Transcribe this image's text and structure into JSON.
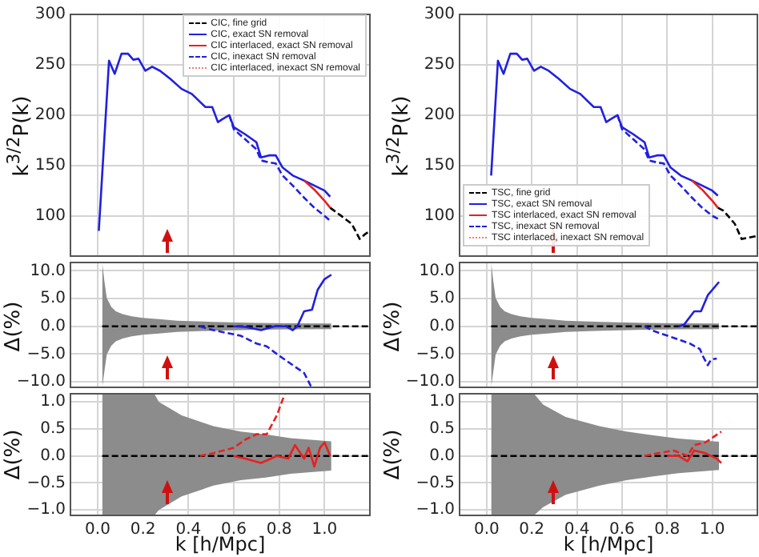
{
  "chart_data": [
    {
      "type": "line",
      "ylabel": "k$^{3/2}$P(k)",
      "xlim": [
        -0.12,
        1.2
      ],
      "ylim": [
        60,
        300
      ],
      "xticks": [
        0,
        0.2,
        0.4,
        0.6,
        0.8,
        1
      ],
      "yticks": [
        100,
        150,
        200,
        250,
        300
      ],
      "grid": true,
      "legend": "top right",
      "tick_labels": "y",
      "series": [
        {
          "name": "CIC, fine grid",
          "color": "#000000",
          "line_style": "dashed",
          "x": [
            1.025,
            1.073,
            1.12,
            1.155,
            1.18,
            1.2
          ],
          "values": [
            108,
            100,
            92,
            77,
            82,
            85
          ]
        },
        {
          "name": "CIC, exact SN removal",
          "color": "#2020e0",
          "line_style": "solid",
          "x": [
            0.005,
            0.05,
            0.075,
            0.105,
            0.134,
            0.157,
            0.18,
            0.21,
            0.24,
            0.275,
            0.32,
            0.37,
            0.415,
            0.475,
            0.505,
            0.53,
            0.55,
            0.58,
            0.6,
            0.65,
            0.7,
            0.72,
            0.755,
            0.785,
            0.815,
            0.86,
            0.91,
            0.955,
            1.0,
            1.025
          ],
          "values": [
            85,
            254,
            241,
            261,
            261,
            255,
            256,
            244,
            248,
            244,
            236,
            226,
            221,
            208,
            208,
            193,
            196,
            200,
            188,
            181,
            173,
            158,
            160,
            160,
            148,
            140,
            135,
            130,
            125,
            119
          ]
        },
        {
          "name": "CIC interlaced, exact SN removal",
          "color": "#e82020",
          "line_style": "solid",
          "x": [
            0.91,
            0.955,
            1.0,
            1.025
          ],
          "values": [
            135,
            126,
            115,
            108
          ]
        },
        {
          "name": "CIC, inexact SN removal",
          "color": "#2020e0",
          "line_style": "dashed",
          "x": [
            0.58,
            0.6,
            0.65,
            0.7,
            0.72,
            0.755,
            0.785,
            0.815,
            0.86,
            0.91,
            0.955,
            1.0,
            1.025
          ],
          "values": [
            200,
            186,
            176,
            166,
            155,
            153,
            152,
            140,
            130,
            118,
            108,
            100,
            95
          ]
        },
        {
          "name": "CIC interlaced, inexact SN removal",
          "color": "#f08080",
          "line_style": "dotted"
        }
      ]
    },
    {
      "type": "line",
      "ylabel": "k$^{3/2}$P(k)",
      "xlim": [
        -0.12,
        1.2
      ],
      "ylim": [
        60,
        300
      ],
      "xticks": [
        0,
        0.2,
        0.4,
        0.6,
        0.8,
        1
      ],
      "yticks": [
        100,
        150,
        200,
        250,
        300
      ],
      "grid": true,
      "legend": "bottom left",
      "tick_labels": "y",
      "series": [
        {
          "name": "TSC, fine grid",
          "color": "#000000",
          "line_style": "dashed",
          "x": [
            1.025,
            1.05,
            1.1,
            1.13,
            1.2
          ],
          "values": [
            108,
            105,
            92,
            77,
            80
          ]
        },
        {
          "name": "TSC, exact SN removal",
          "color": "#2020e0",
          "line_style": "solid",
          "x": [
            0.02,
            0.05,
            0.075,
            0.105,
            0.134,
            0.157,
            0.18,
            0.21,
            0.24,
            0.275,
            0.32,
            0.37,
            0.415,
            0.475,
            0.505,
            0.53,
            0.55,
            0.58,
            0.6,
            0.65,
            0.7,
            0.72,
            0.755,
            0.785,
            0.815,
            0.86,
            0.91,
            0.955,
            1.0,
            1.025
          ],
          "values": [
            140,
            254,
            241,
            261,
            261,
            255,
            256,
            244,
            248,
            244,
            236,
            226,
            221,
            208,
            208,
            193,
            196,
            200,
            188,
            181,
            173,
            158,
            160,
            160,
            148,
            140,
            135,
            130,
            125,
            120
          ]
        },
        {
          "name": "TSC interlaced, exact SN removal",
          "color": "#e82020",
          "line_style": "solid",
          "x": [
            0.91,
            0.955,
            1.0,
            1.025
          ],
          "values": [
            135,
            126,
            115,
            108
          ]
        },
        {
          "name": "TSC, inexact SN removal",
          "color": "#2020e0",
          "line_style": "dashed",
          "x": [
            0.58,
            0.6,
            0.65,
            0.7,
            0.72,
            0.755,
            0.785,
            0.815,
            0.86,
            0.91,
            0.955,
            1.0,
            1.025
          ],
          "values": [
            200,
            186,
            176,
            166,
            155,
            153,
            152,
            140,
            130,
            118,
            108,
            100,
            97
          ]
        },
        {
          "name": "TSC interlaced, inexact SN removal",
          "color": "#f08080",
          "line_style": "dotted"
        }
      ]
    },
    {
      "type": "line",
      "ylabel": "Δ(%)",
      "xlim": [
        -0.12,
        1.2
      ],
      "ylim": [
        -11,
        11.5
      ],
      "xticks": [
        0,
        0.2,
        0.4,
        0.6,
        0.8,
        1
      ],
      "yticks": [
        {
          "value": 10,
          "label": "10.0"
        },
        {
          "value": 5,
          "label": "5.0"
        },
        {
          "value": 0,
          "label": "0.0"
        },
        {
          "value": -5,
          "label": "−5.0"
        },
        {
          "value": -10,
          "label": "−10.0"
        }
      ],
      "grid": true,
      "tick_labels": "y",
      "series": [
        {
          "color": "#000000",
          "line_style": "dashed",
          "x": [
            0.02,
            0.03,
            0.04,
            0.06,
            0.08,
            0.11,
            0.15,
            0.2,
            0.27,
            0.35,
            0.51,
            0.7,
            0.85,
            1.03,
            1.2
          ],
          "values": [
            0,
            0,
            0,
            0,
            0,
            0,
            0,
            0,
            0,
            0,
            0,
            0,
            0,
            0,
            0
          ],
          "upper": [
            11.5,
            8,
            5.1,
            3.5,
            2.7,
            2.2,
            1.8,
            1.5,
            1.3,
            1.0,
            0.8,
            0.6,
            0.55,
            0.5,
            null
          ],
          "lower": [
            -11,
            -8,
            -5.1,
            -3.5,
            -2.7,
            -2.2,
            -1.8,
            -1.5,
            -1.3,
            -1.0,
            -0.8,
            -0.6,
            -0.55,
            -0.5,
            null
          ]
        },
        {
          "color": "#2020e0",
          "line_style": "solid",
          "x": [
            0.6,
            0.65,
            0.72,
            0.78,
            0.83,
            0.86,
            0.88,
            0.91,
            0.945,
            0.97,
            1.0,
            1.03
          ],
          "values": [
            0,
            -0.1,
            -0.7,
            0,
            0,
            -0.7,
            0,
            2.7,
            3.0,
            6.6,
            8.5,
            9.3
          ]
        },
        {
          "color": "#2020e0",
          "line_style": "dashed",
          "x": [
            0.45,
            0.51,
            0.63,
            0.7,
            0.745,
            0.79,
            0.86,
            0.91,
            0.94
          ],
          "values": [
            0,
            -0.7,
            -1.7,
            -3.1,
            -3.6,
            -5.0,
            -7.0,
            -8.4,
            -10.8
          ]
        }
      ]
    },
    {
      "type": "line",
      "ylabel": "Δ(%)",
      "xlim": [
        -0.12,
        1.2
      ],
      "ylim": [
        -11,
        11.5
      ],
      "xticks": [
        0,
        0.2,
        0.4,
        0.6,
        0.8,
        1
      ],
      "yticks": [
        {
          "value": 10,
          "label": "10.0"
        },
        {
          "value": 5,
          "label": "5.0"
        },
        {
          "value": 0,
          "label": "0.0"
        },
        {
          "value": -5,
          "label": "−5.0"
        },
        {
          "value": -10,
          "label": "−10.0"
        }
      ],
      "grid": true,
      "tick_labels": "y",
      "series": [
        {
          "color": "#000000",
          "line_style": "dashed",
          "x": [
            0.02,
            0.03,
            0.04,
            0.06,
            0.08,
            0.11,
            0.15,
            0.2,
            0.27,
            0.35,
            0.51,
            0.7,
            0.85,
            1.03,
            1.2
          ],
          "values": [
            0,
            0,
            0,
            0,
            0,
            0,
            0,
            0,
            0,
            0,
            0,
            0,
            0,
            0,
            0
          ],
          "upper": [
            11.5,
            8,
            5.1,
            3.5,
            2.7,
            2.2,
            1.8,
            1.5,
            1.3,
            1.0,
            0.8,
            0.6,
            0.55,
            0.5,
            null
          ],
          "lower": [
            -11,
            -8,
            -5.1,
            -3.5,
            -2.7,
            -2.2,
            -1.8,
            -1.5,
            -1.3,
            -1.0,
            -0.8,
            -0.6,
            -0.55,
            -0.5,
            null
          ]
        },
        {
          "color": "#2020e0",
          "line_style": "solid",
          "x": [
            0.85,
            0.875,
            0.92,
            0.95,
            0.98,
            1.03
          ],
          "values": [
            0,
            0.3,
            2.7,
            2.7,
            5.6,
            8.0
          ]
        },
        {
          "color": "#2020e0",
          "line_style": "dashed",
          "x": [
            0.7,
            0.73,
            0.83,
            0.9,
            0.945,
            0.96,
            0.98,
            0.995,
            1.02
          ],
          "values": [
            0,
            -0.7,
            -2.1,
            -3.1,
            -4.1,
            -5.5,
            -7.0,
            -6.0,
            -5.8
          ]
        }
      ]
    },
    {
      "type": "line",
      "ylabel": "Δ(%)",
      "xlabel": "k [h/Mpc]",
      "xlim": [
        -0.12,
        1.2
      ],
      "ylim": [
        -1.1,
        1.15
      ],
      "xticks": [
        {
          "value": 0,
          "label": "0.0"
        },
        {
          "value": 0.2,
          "label": "0.2"
        },
        {
          "value": 0.4,
          "label": "0.4"
        },
        {
          "value": 0.6,
          "label": "0.6"
        },
        {
          "value": 0.8,
          "label": "0.8"
        },
        {
          "value": 1,
          "label": "1.0"
        }
      ],
      "yticks": [
        {
          "value": 1,
          "label": "1.0"
        },
        {
          "value": 0.5,
          "label": "0.5"
        },
        {
          "value": 0,
          "label": "0.0"
        },
        {
          "value": -0.5,
          "label": "−0.5"
        },
        {
          "value": -1,
          "label": "−1.0"
        }
      ],
      "grid": true,
      "series": [
        {
          "color": "#000000",
          "line_style": "dashed",
          "x": [
            0.02,
            0.25,
            0.27,
            0.37,
            0.51,
            0.63,
            0.74,
            0.85,
            1.03,
            1.2
          ],
          "values": [
            0,
            0,
            0,
            0,
            0,
            0,
            0,
            0,
            0,
            0
          ],
          "upper": [
            1.15,
            1.15,
            1.0,
            0.75,
            0.55,
            0.45,
            0.4,
            0.33,
            0.27,
            null
          ],
          "lower": [
            -1.1,
            -1.1,
            -1.0,
            -0.75,
            -0.55,
            -0.45,
            -0.4,
            -0.33,
            -0.27,
            null
          ]
        },
        {
          "color": "#e82020",
          "line_style": "solid",
          "x": [
            0.6,
            0.65,
            0.72,
            0.79,
            0.84,
            0.87,
            0.91,
            0.93,
            0.955,
            0.98,
            1.0,
            1.025
          ],
          "values": [
            0,
            -0.05,
            -0.13,
            0,
            -0.05,
            0.2,
            -0.05,
            0.15,
            -0.2,
            0.15,
            0.25,
            0
          ]
        },
        {
          "color": "#e82020",
          "line_style": "dashed",
          "x": [
            0.45,
            0.51,
            0.6,
            0.65,
            0.7,
            0.745,
            0.79,
            0.825
          ],
          "values": [
            0,
            0.05,
            0.15,
            0.3,
            0.4,
            0.4,
            0.75,
            1.15
          ]
        }
      ]
    },
    {
      "type": "line",
      "ylabel": "Δ(%)",
      "xlabel": "k [h/Mpc]",
      "xlim": [
        -0.12,
        1.2
      ],
      "ylim": [
        -1.1,
        1.15
      ],
      "xticks": [
        {
          "value": 0,
          "label": "0.0"
        },
        {
          "value": 0.2,
          "label": "0.2"
        },
        {
          "value": 0.4,
          "label": "0.4"
        },
        {
          "value": 0.6,
          "label": "0.6"
        },
        {
          "value": 0.8,
          "label": "0.8"
        },
        {
          "value": 1,
          "label": "1.0"
        }
      ],
      "yticks": [
        {
          "value": 1,
          "label": "1.0"
        },
        {
          "value": 0.5,
          "label": "0.5"
        },
        {
          "value": 0,
          "label": "0.0"
        },
        {
          "value": -0.5,
          "label": "−0.5"
        },
        {
          "value": -1,
          "label": "−1.0"
        }
      ],
      "grid": true,
      "series": [
        {
          "color": "#000000",
          "line_style": "dashed",
          "x": [
            0.02,
            0.21,
            0.25,
            0.35,
            0.5,
            0.62,
            0.74,
            0.85,
            1.03,
            1.2
          ],
          "values": [
            0,
            0,
            0,
            0,
            0,
            0,
            0,
            0,
            0,
            0
          ],
          "upper": [
            1.15,
            1.15,
            0.95,
            0.72,
            0.55,
            0.45,
            0.38,
            0.32,
            0.26,
            null
          ],
          "lower": [
            -1.1,
            -1.1,
            -0.95,
            -0.72,
            -0.55,
            -0.45,
            -0.38,
            -0.32,
            -0.26,
            null
          ]
        },
        {
          "color": "#e82020",
          "line_style": "solid",
          "x": [
            0.8,
            0.85,
            0.89,
            0.92,
            0.97,
            1.02,
            1.04
          ],
          "values": [
            0,
            0,
            -0.1,
            0.1,
            0.05,
            -0.05,
            -0.13
          ]
        },
        {
          "color": "#e82020",
          "line_style": "dashed",
          "x": [
            0.7,
            0.76,
            0.83,
            0.89,
            0.92,
            0.97,
            1.04
          ],
          "values": [
            0,
            0.05,
            0.1,
            0,
            0.2,
            0.25,
            0.45
          ]
        }
      ]
    }
  ]
}
